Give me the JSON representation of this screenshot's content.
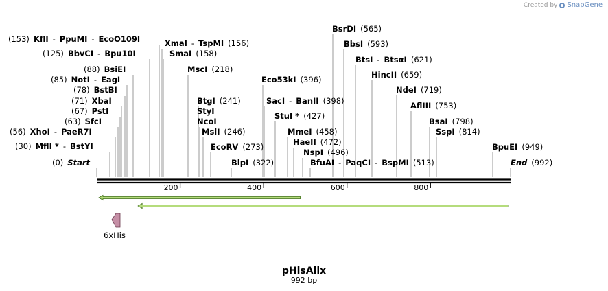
{
  "credit": {
    "prefix": "Created by",
    "brand": "SnapGene"
  },
  "plasmid": {
    "name": "pHisAlix",
    "length_label": "992 bp",
    "length": 992
  },
  "axis": {
    "ticks": [
      "200",
      "400",
      "600",
      "800"
    ]
  },
  "features": {
    "arrows": [
      {
        "name": "feature-arrow-1",
        "start": 0,
        "end": 493,
        "direction": "left",
        "color": "#b5dc7c"
      },
      {
        "name": "feature-arrow-2",
        "start": 94,
        "end": 992,
        "direction": "left",
        "color": "#b5dc7c"
      }
    ],
    "his_tag": {
      "label": "6xHis",
      "color": "#c58fa6"
    }
  },
  "sites": [
    {
      "id": "start",
      "parts": [
        {
          "t": "(0)",
          "s": "lbl"
        },
        {
          "t": "Start",
          "s": "em"
        }
      ]
    },
    {
      "id": "mfli",
      "parts": [
        {
          "t": "(30)",
          "s": "lbl"
        },
        {
          "t": "MflI *",
          "s": "enz"
        },
        {
          "t": "-",
          "s": "lbl"
        },
        {
          "t": "BstYI",
          "s": "enz"
        }
      ]
    },
    {
      "id": "xhoi",
      "parts": [
        {
          "t": "(56)",
          "s": "lbl"
        },
        {
          "t": "XhoI",
          "s": "enz"
        },
        {
          "t": "-",
          "s": "lbl"
        },
        {
          "t": "PaeR7I",
          "s": "enz"
        }
      ]
    },
    {
      "id": "sfci",
      "parts": [
        {
          "t": "(63)",
          "s": "lbl"
        },
        {
          "t": "SfcI",
          "s": "enz"
        }
      ]
    },
    {
      "id": "psti",
      "parts": [
        {
          "t": "(67)",
          "s": "lbl"
        },
        {
          "t": "PstI",
          "s": "enz"
        }
      ]
    },
    {
      "id": "xbai",
      "parts": [
        {
          "t": "(71)",
          "s": "lbl"
        },
        {
          "t": "XbaI",
          "s": "enz"
        }
      ]
    },
    {
      "id": "bstbi",
      "parts": [
        {
          "t": "(78)",
          "s": "lbl"
        },
        {
          "t": "BstBI",
          "s": "enz"
        }
      ]
    },
    {
      "id": "noti",
      "parts": [
        {
          "t": "(85)",
          "s": "lbl"
        },
        {
          "t": "NotI",
          "s": "enz"
        },
        {
          "t": "-",
          "s": "lbl"
        },
        {
          "t": "EagI",
          "s": "enz"
        }
      ]
    },
    {
      "id": "bsiei",
      "parts": [
        {
          "t": "(88)",
          "s": "lbl"
        },
        {
          "t": "BsiEI",
          "s": "enz"
        }
      ]
    },
    {
      "id": "bbvci",
      "parts": [
        {
          "t": "(125)",
          "s": "lbl"
        },
        {
          "t": "BbvCI",
          "s": "enz"
        },
        {
          "t": "-",
          "s": "lbl"
        },
        {
          "t": "Bpu10I",
          "s": "enz"
        }
      ]
    },
    {
      "id": "kfli",
      "parts": [
        {
          "t": "(153)",
          "s": "lbl"
        },
        {
          "t": "KflI",
          "s": "enz"
        },
        {
          "t": "-",
          "s": "lbl"
        },
        {
          "t": "PpuMI",
          "s": "enz"
        },
        {
          "t": "-",
          "s": "lbl"
        },
        {
          "t": "EcoO109I",
          "s": "enz"
        }
      ]
    },
    {
      "id": "xmai",
      "parts": [
        {
          "t": "XmaI",
          "s": "enz"
        },
        {
          "t": "-",
          "s": "lbl"
        },
        {
          "t": "TspMI",
          "s": "enz"
        },
        {
          "t": "(156)",
          "s": "lbl"
        }
      ]
    },
    {
      "id": "smai",
      "parts": [
        {
          "t": "SmaI",
          "s": "enz"
        },
        {
          "t": "(158)",
          "s": "lbl"
        }
      ]
    },
    {
      "id": "msci",
      "parts": [
        {
          "t": "MscI",
          "s": "enz"
        },
        {
          "t": "(218)",
          "s": "lbl"
        }
      ]
    },
    {
      "id": "btgi",
      "parts": [
        {
          "t": "BtgI",
          "s": "enz"
        },
        {
          "t": "(241)",
          "s": "lbl"
        }
      ]
    },
    {
      "id": "styi",
      "parts": [
        {
          "t": "StyI",
          "s": "enz"
        }
      ]
    },
    {
      "id": "ncoi",
      "parts": [
        {
          "t": "NcoI",
          "s": "enz"
        }
      ]
    },
    {
      "id": "msli",
      "parts": [
        {
          "t": "MslI",
          "s": "enz"
        },
        {
          "t": "(246)",
          "s": "lbl"
        }
      ]
    },
    {
      "id": "ecorv",
      "parts": [
        {
          "t": "EcoRV",
          "s": "enz"
        },
        {
          "t": "(273)",
          "s": "lbl"
        }
      ]
    },
    {
      "id": "blpi",
      "parts": [
        {
          "t": "BlpI",
          "s": "enz"
        },
        {
          "t": "(322)",
          "s": "lbl"
        }
      ]
    },
    {
      "id": "eco53ki",
      "parts": [
        {
          "t": "Eco53kI",
          "s": "enz"
        },
        {
          "t": "(396)",
          "s": "lbl"
        }
      ]
    },
    {
      "id": "saci",
      "parts": [
        {
          "t": "SacI",
          "s": "enz"
        },
        {
          "t": "-",
          "s": "lbl"
        },
        {
          "t": "BanII",
          "s": "enz"
        },
        {
          "t": "(398)",
          "s": "lbl"
        }
      ]
    },
    {
      "id": "stui",
      "parts": [
        {
          "t": "StuI *",
          "s": "enz"
        },
        {
          "t": "(427)",
          "s": "lbl"
        }
      ]
    },
    {
      "id": "mmei",
      "parts": [
        {
          "t": "MmeI",
          "s": "enz"
        },
        {
          "t": "(458)",
          "s": "lbl"
        }
      ]
    },
    {
      "id": "haeii",
      "parts": [
        {
          "t": "HaeII",
          "s": "enz"
        },
        {
          "t": "(472)",
          "s": "lbl"
        }
      ]
    },
    {
      "id": "nspi",
      "parts": [
        {
          "t": "NspI",
          "s": "enz"
        },
        {
          "t": "(496)",
          "s": "lbl"
        }
      ]
    },
    {
      "id": "bfuai",
      "parts": [
        {
          "t": "BfuAI",
          "s": "enz"
        },
        {
          "t": "-",
          "s": "lbl"
        },
        {
          "t": "PaqCI",
          "s": "enz"
        },
        {
          "t": "-",
          "s": "lbl"
        },
        {
          "t": "BspMI",
          "s": "enz"
        },
        {
          "t": "(513)",
          "s": "lbl"
        }
      ]
    },
    {
      "id": "bsrdi",
      "parts": [
        {
          "t": "BsrDI",
          "s": "enz"
        },
        {
          "t": "(565)",
          "s": "lbl"
        }
      ]
    },
    {
      "id": "bbsi",
      "parts": [
        {
          "t": "BbsI",
          "s": "enz"
        },
        {
          "t": "(593)",
          "s": "lbl"
        }
      ]
    },
    {
      "id": "btsi",
      "parts": [
        {
          "t": "BtsI",
          "s": "enz"
        },
        {
          "t": "-",
          "s": "lbl"
        },
        {
          "t": "BtsαI",
          "s": "enz"
        },
        {
          "t": "(621)",
          "s": "lbl"
        }
      ]
    },
    {
      "id": "hincii",
      "parts": [
        {
          "t": "HincII",
          "s": "enz"
        },
        {
          "t": "(659)",
          "s": "lbl"
        }
      ]
    },
    {
      "id": "ndei",
      "parts": [
        {
          "t": "NdeI",
          "s": "enz"
        },
        {
          "t": "(719)",
          "s": "lbl"
        }
      ]
    },
    {
      "id": "afliii",
      "parts": [
        {
          "t": "AflIII",
          "s": "enz"
        },
        {
          "t": "(753)",
          "s": "lbl"
        }
      ]
    },
    {
      "id": "bsai",
      "parts": [
        {
          "t": "BsaI",
          "s": "enz"
        },
        {
          "t": "(798)",
          "s": "lbl"
        }
      ]
    },
    {
      "id": "sspi",
      "parts": [
        {
          "t": "SspI",
          "s": "enz"
        },
        {
          "t": "(814)",
          "s": "lbl"
        }
      ]
    },
    {
      "id": "bpuei",
      "parts": [
        {
          "t": "BpuEI",
          "s": "enz"
        },
        {
          "t": "(949)",
          "s": "lbl"
        }
      ]
    },
    {
      "id": "end",
      "parts": [
        {
          "t": "End",
          "s": "em"
        },
        {
          "t": "(992)",
          "s": "lbl"
        }
      ]
    }
  ]
}
